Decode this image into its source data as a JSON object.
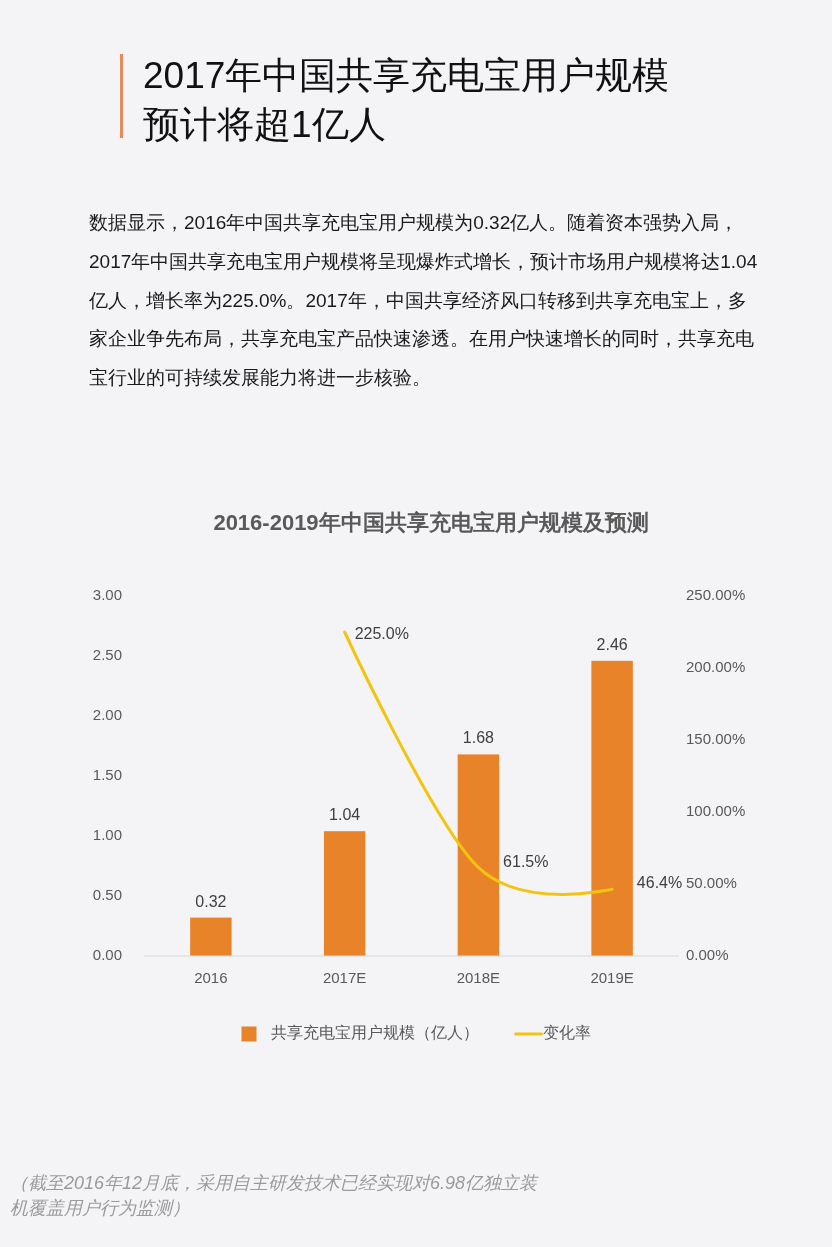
{
  "chart_data": {
    "type": "bar",
    "title": "2016-2019年中国共享充电宝用户规模及预测",
    "annotations": [
      "2017年中国共享充电宝用户规模预计将超1亿人",
      "数据显示，2016年中国共享充电宝用户规模为0.32亿人。随着资本强势入局，2017年中国共享充电宝用户规模将呈现爆炸式增长，预计市场用户规模将达1.04亿人，增长率为225.0%。2017年，中国共享经济风口转移到共享充电宝上，多家企业争先布局，共享充电宝产品快速渗透。在用户快速增长的同时，共享充电宝行业的可持续发展能力将进一步核验。",
      "（截至2016年12月底，采用自主研发技术已经实现对6.98亿独立装机覆盖用户行为监测）"
    ],
    "categories": [
      "2016",
      "2017E",
      "2018E",
      "2019E"
    ],
    "series": [
      {
        "name": "共享充电宝用户规模（亿人）",
        "color": "#e8832a",
        "values": [
          0.32,
          1.04,
          1.68,
          2.46
        ],
        "value_labels": [
          "0.32",
          "1.04",
          "1.68",
          "2.46"
        ]
      },
      {
        "name": "变化率",
        "type": "line",
        "axis": "y2",
        "color": "#f2c40f",
        "values": [
          null,
          225.0,
          61.5,
          46.4
        ],
        "value_labels": [
          null,
          "225.0%",
          "61.5%",
          "46.4%"
        ]
      }
    ],
    "ylim": [
      0,
      3
    ],
    "yticks": [
      {
        "value": 0,
        "label": "0.00"
      },
      {
        "value": 0.5,
        "label": "0.50"
      },
      {
        "value": 1,
        "label": "1.00"
      },
      {
        "value": 1.5,
        "label": "1.50"
      },
      {
        "value": 2,
        "label": "2.00"
      },
      {
        "value": 2.5,
        "label": "2.50"
      },
      {
        "value": 3,
        "label": "3.00"
      }
    ],
    "y2lim": [
      0,
      250
    ],
    "y2ticks": [
      {
        "value": 0,
        "label": "0.00%"
      },
      {
        "value": 50,
        "label": "50.00%"
      },
      {
        "value": 100,
        "label": "100.00%"
      },
      {
        "value": 150,
        "label": "150.00%"
      },
      {
        "value": 200,
        "label": "200.00%"
      },
      {
        "value": 250,
        "label": "250.00%"
      }
    ],
    "legend": "bottom"
  }
}
